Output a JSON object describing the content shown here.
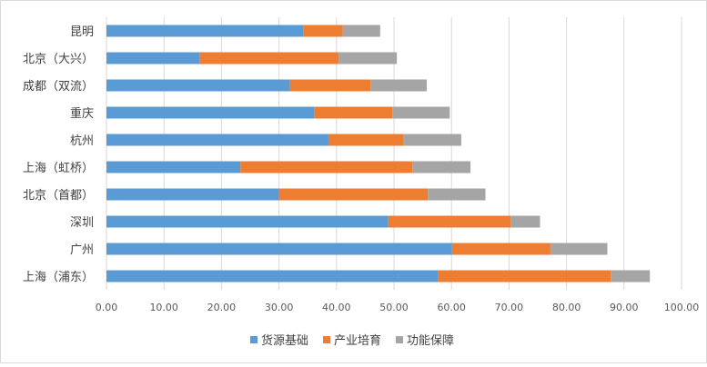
{
  "chart_data": {
    "type": "bar",
    "orientation": "horizontal",
    "stacked": true,
    "categories": [
      "昆明",
      "北京（大兴）",
      "成都（双流）",
      "重庆",
      "杭州",
      "上海（虹桥）",
      "北京（首都）",
      "深圳",
      "广州",
      "上海（浦东）"
    ],
    "series": [
      {
        "name": "货源基础",
        "color": "#5b9bd5",
        "values": [
          34.2,
          16.2,
          31.9,
          36.1,
          38.6,
          23.3,
          30.0,
          49.0,
          60.1,
          57.6
        ]
      },
      {
        "name": "产业培育",
        "color": "#ed7d31",
        "values": [
          6.9,
          24.2,
          14.0,
          13.6,
          13.1,
          29.9,
          25.9,
          21.3,
          17.1,
          30.1
        ]
      },
      {
        "name": "功能保障",
        "color": "#a5a5a5",
        "values": [
          6.5,
          10.1,
          9.8,
          10.0,
          10.0,
          10.1,
          10.0,
          5.1,
          9.9,
          6.8
        ]
      }
    ],
    "xlim": [
      0,
      100
    ],
    "xticks": [
      "0.00",
      "10.00",
      "20.00",
      "30.00",
      "40.00",
      "50.00",
      "60.00",
      "70.00",
      "80.00",
      "90.00",
      "100.00"
    ],
    "grid": "vertical",
    "legend_position": "bottom",
    "title": "",
    "xlabel": "",
    "ylabel": ""
  }
}
